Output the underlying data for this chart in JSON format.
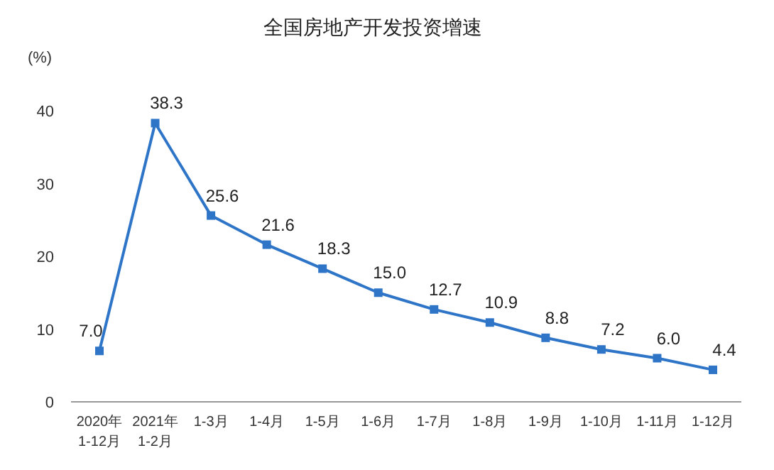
{
  "chart_data": {
    "type": "line",
    "title": "全国房地产开发投资增速",
    "ylabel": "(%)",
    "categories": [
      "2020年\n1-12月",
      "2021年\n1-2月",
      "1-3月",
      "1-4月",
      "1-5月",
      "1-6月",
      "1-7月",
      "1-8月",
      "1-9月",
      "1-10月",
      "1-11月",
      "1-12月"
    ],
    "series": [
      {
        "color": "#2e75c8",
        "values": [
          7.0,
          38.3,
          25.6,
          21.6,
          18.3,
          15.0,
          12.7,
          10.9,
          8.8,
          7.2,
          6.0,
          4.4
        ],
        "value_labels": [
          "7.0",
          "38.3",
          "25.6",
          "21.6",
          "18.3",
          "15.0",
          "12.7",
          "10.9",
          "8.8",
          "7.2",
          "6.0",
          "4.4"
        ]
      }
    ],
    "ylim": [
      0,
      40
    ],
    "yticks": [
      0,
      10,
      20,
      30,
      40
    ],
    "marker": "square",
    "line_style": "solid"
  }
}
